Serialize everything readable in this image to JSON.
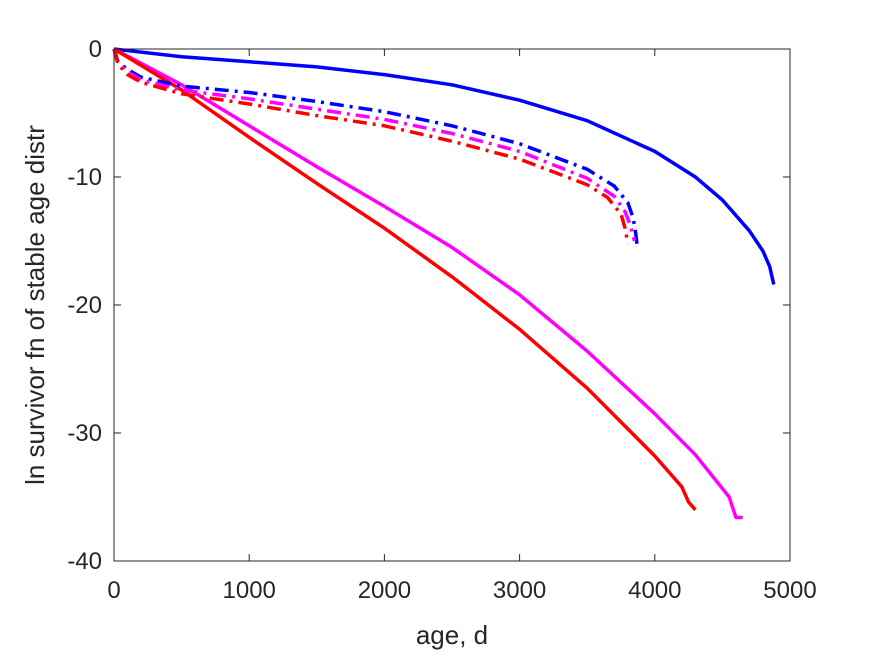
{
  "chart_data": {
    "type": "line",
    "title": "",
    "xlabel": "age, d",
    "ylabel": "ln survivor fn of stable age distr",
    "xlim": [
      0,
      5000
    ],
    "ylim": [
      -40,
      0
    ],
    "xticks": [
      0,
      1000,
      2000,
      3000,
      4000,
      5000
    ],
    "yticks": [
      0,
      -10,
      -20,
      -30,
      -40
    ],
    "xtick_labels": [
      "0",
      "1000",
      "2000",
      "3000",
      "4000",
      "5000"
    ],
    "ytick_labels": [
      "0",
      "-10",
      "-20",
      "-30",
      "-40"
    ],
    "grid": false,
    "legend": "none",
    "series": [
      {
        "color": "#0000ff",
        "style": "solid",
        "x": [
          0,
          500,
          1000,
          1500,
          2000,
          2500,
          3000,
          3500,
          4000,
          4300,
          4500,
          4700,
          4800,
          4850,
          4880
        ],
        "y": [
          0,
          -0.6,
          -1.0,
          -1.4,
          -2.0,
          -2.8,
          -4.0,
          -5.6,
          -8.0,
          -10.0,
          -11.8,
          -14.2,
          -15.8,
          -17.0,
          -18.4
        ]
      },
      {
        "color": "#ff00ff",
        "style": "solid",
        "x": [
          0,
          500,
          1000,
          1500,
          2000,
          2500,
          3000,
          3500,
          4000,
          4300,
          4550,
          4600,
          4650
        ],
        "y": [
          0,
          -2.8,
          -6.0,
          -9.2,
          -12.3,
          -15.5,
          -19.2,
          -23.6,
          -28.5,
          -31.7,
          -35.0,
          -36.6,
          -36.6
        ]
      },
      {
        "color": "#ff0000",
        "style": "solid",
        "x": [
          0,
          500,
          1000,
          1500,
          2000,
          2500,
          3000,
          3500,
          4000,
          4200,
          4250,
          4300
        ],
        "y": [
          0,
          -3.2,
          -6.9,
          -10.5,
          -14.0,
          -17.8,
          -21.9,
          -26.5,
          -31.8,
          -34.2,
          -35.4,
          -36.0
        ]
      },
      {
        "color": "#0000ff",
        "style": "dashdot",
        "x": [
          0,
          30,
          100,
          200,
          500,
          1000,
          1500,
          2000,
          2500,
          3000,
          3500,
          3700,
          3800,
          3840,
          3860,
          3870
        ],
        "y": [
          0,
          -1.0,
          -1.6,
          -2.2,
          -2.9,
          -3.4,
          -4.1,
          -4.9,
          -6.0,
          -7.4,
          -9.4,
          -10.7,
          -12.0,
          -13.2,
          -14.5,
          -15.4
        ]
      },
      {
        "color": "#ff00ff",
        "style": "dashdot",
        "x": [
          0,
          30,
          100,
          200,
          500,
          1000,
          1500,
          2000,
          2500,
          3000,
          3500,
          3700,
          3780,
          3820,
          3850
        ],
        "y": [
          0,
          -1.1,
          -1.8,
          -2.4,
          -3.2,
          -3.9,
          -4.7,
          -5.5,
          -6.6,
          -8.0,
          -10.1,
          -11.5,
          -12.7,
          -13.8,
          -15.0
        ]
      },
      {
        "color": "#ff0000",
        "style": "dashdot",
        "x": [
          0,
          30,
          100,
          200,
          500,
          1000,
          1500,
          2000,
          2500,
          3000,
          3500,
          3650,
          3750,
          3780,
          3800
        ],
        "y": [
          0,
          -1.2,
          -2.0,
          -2.6,
          -3.5,
          -4.3,
          -5.2,
          -6.0,
          -7.2,
          -8.6,
          -10.6,
          -11.6,
          -12.9,
          -14.0,
          -15.2
        ]
      }
    ]
  }
}
